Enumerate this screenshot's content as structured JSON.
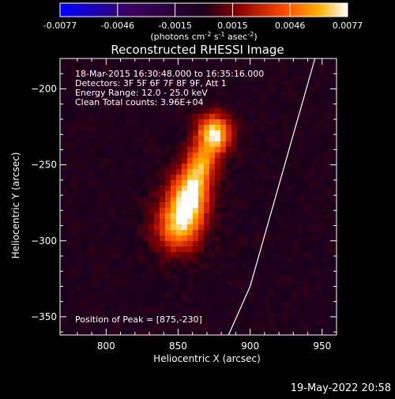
{
  "chart_data": {
    "type": "heatmap",
    "title": "Reconstructed RHESSI Image",
    "xlabel": "Heliocentric X (arcsec)",
    "ylabel": "Heliocentric Y (arcsec)",
    "xlim": [
      768,
      960
    ],
    "ylim": [
      -362,
      -180
    ],
    "xticks": [
      800,
      850,
      900,
      950
    ],
    "yticks": [
      -200,
      -250,
      -300,
      -350
    ],
    "colorbar": {
      "label_main": "(photons cm",
      "label_exp1": "-2",
      "label_mid1": " s",
      "label_exp2": "-1",
      "label_mid2": " asec",
      "label_exp3": "-2",
      "label_end": ")",
      "ticks": [
        "-0.0077",
        "-0.0046",
        "-0.0015",
        "0.0015",
        "0.0046",
        "0.0077"
      ],
      "range": [
        -0.0077,
        0.0077
      ]
    },
    "annotations": [
      "18-Mar-2015 16:30:48.000 to 16:35:16.000",
      "Detectors: 3F 5F 6F 7F 8F 9F, Att 1",
      "Energy Range: 12.0 - 25.0 keV",
      "Clean     Total counts: 3.96E+04"
    ],
    "peak_label": "Position of Peak = [875,-230]",
    "peak": [
      875,
      -230
    ],
    "sources": [
      {
        "x": 875,
        "y": -230,
        "sx": 8,
        "sy": 9,
        "amp": 0.0077
      },
      {
        "x": 858,
        "y": -270,
        "sx": 9,
        "sy": 12,
        "amp": 0.0074
      },
      {
        "x": 850,
        "y": -290,
        "sx": 11,
        "sy": 12,
        "amp": 0.006
      },
      {
        "x": 866,
        "y": -250,
        "sx": 7,
        "sy": 9,
        "amp": 0.005
      }
    ],
    "limb_curve": [
      [
        945,
        -180
      ],
      [
        930,
        -230
      ],
      [
        900,
        -330
      ],
      [
        885,
        -362
      ]
    ]
  },
  "footer": {
    "date": "19-May-2022 20:58"
  }
}
